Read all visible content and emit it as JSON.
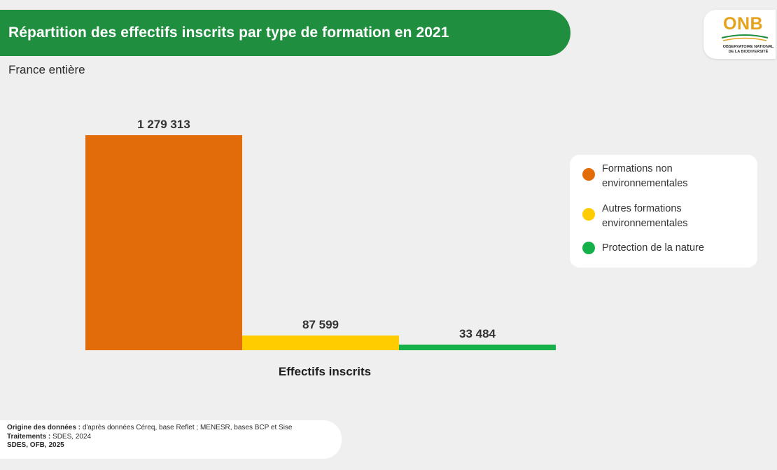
{
  "header": {
    "title": "Répartition des effectifs inscrits par type de formation en 2021",
    "subtitle": "France entière"
  },
  "logo": {
    "name": "ONB",
    "subtitle_line1": "OBSERVATOIRE NATIONAL",
    "subtitle_line2": "DE LA BIODIVERSITÉ"
  },
  "chart_data": {
    "type": "bar",
    "categories": [
      "Effectifs inscrits"
    ],
    "xlabel": "Effectifs inscrits",
    "series": [
      {
        "name": "Formations non environnementales",
        "values": [
          1279313
        ],
        "value_label": "1 279 313",
        "color": "#e26b0a"
      },
      {
        "name": "Autres formations environnementales",
        "values": [
          87599
        ],
        "value_label": "87 599",
        "color": "#ffcc00"
      },
      {
        "name": "Protection de la nature",
        "values": [
          33484
        ],
        "value_label": "33 484",
        "color": "#16b04a"
      }
    ],
    "ylim": [
      0,
      1279313
    ],
    "grid": false,
    "legend_position": "right"
  },
  "legend": {
    "items": [
      {
        "label": "Formations non environnementales",
        "color": "#e26b0a"
      },
      {
        "label": "Autres formations environnementales",
        "color": "#ffcc00"
      },
      {
        "label": "Protection de la nature",
        "color": "#16b04a"
      }
    ]
  },
  "footer": {
    "origin_label": "Origine des données :",
    "origin_value": "d'après données Céreq, base Reflet ; MENESR, bases BCP et Sise",
    "processing_label": "Traitements :",
    "processing_value": "SDES, 2024",
    "credit": "SDES, OFB, 2025"
  },
  "colors": {
    "banner": "#1f8f3f",
    "logo_orange": "#e6a21c",
    "logo_green": "#1f8f3f"
  }
}
